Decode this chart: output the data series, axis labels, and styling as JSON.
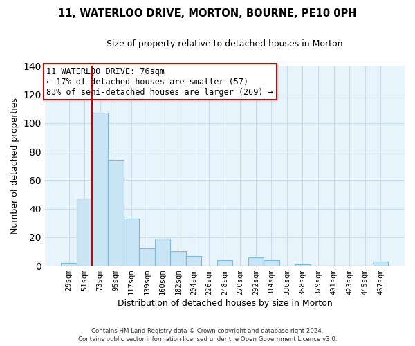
{
  "title": "11, WATERLOO DRIVE, MORTON, BOURNE, PE10 0PH",
  "subtitle": "Size of property relative to detached houses in Morton",
  "xlabel": "Distribution of detached houses by size in Morton",
  "ylabel": "Number of detached properties",
  "bar_labels": [
    "29sqm",
    "51sqm",
    "73sqm",
    "95sqm",
    "117sqm",
    "139sqm",
    "160sqm",
    "182sqm",
    "204sqm",
    "226sqm",
    "248sqm",
    "270sqm",
    "292sqm",
    "314sqm",
    "336sqm",
    "358sqm",
    "379sqm",
    "401sqm",
    "423sqm",
    "445sqm",
    "467sqm"
  ],
  "bar_values": [
    2,
    47,
    107,
    74,
    33,
    12,
    19,
    10,
    7,
    0,
    4,
    0,
    6,
    4,
    0,
    1,
    0,
    0,
    0,
    0,
    3
  ],
  "bar_color": "#c9e4f5",
  "bar_edge_color": "#7fbcd4",
  "grid_color": "#ccdce8",
  "background_color": "#e8f4fb",
  "property_line_color": "#cc0000",
  "property_line_bar_index": 2,
  "annotation_text": "11 WATERLOO DRIVE: 76sqm\n← 17% of detached houses are smaller (57)\n83% of semi-detached houses are larger (269) →",
  "annotation_box_color": "#ffffff",
  "annotation_box_edge_color": "#cc0000",
  "ylim": [
    0,
    140
  ],
  "yticks": [
    0,
    20,
    40,
    60,
    80,
    100,
    120,
    140
  ],
  "footer_line1": "Contains HM Land Registry data © Crown copyright and database right 2024.",
  "footer_line2": "Contains public sector information licensed under the Open Government Licence v3.0."
}
